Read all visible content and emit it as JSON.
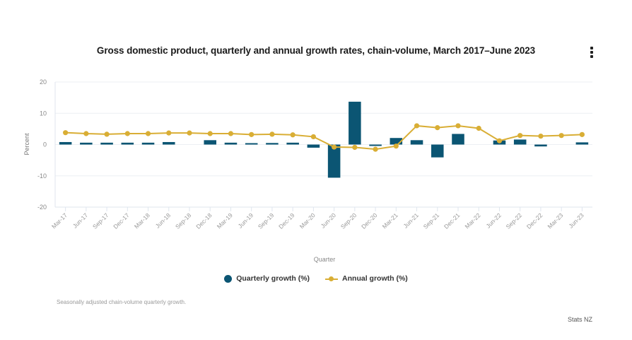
{
  "chart_data": {
    "type": "bar",
    "title": "Gross domestic product, quarterly and annual growth rates, chain-volume, March 2017–June 2023",
    "xlabel": "Quarter",
    "ylabel": "Percent",
    "ylim": [
      -20,
      20
    ],
    "yticks": [
      20,
      10,
      0,
      -10,
      -20
    ],
    "grid": true,
    "legend_position": "bottom-center",
    "categories": [
      "Mar-17",
      "Jun-17",
      "Sep-17",
      "Dec-17",
      "Mar-18",
      "Jun-18",
      "Sep-18",
      "Dec-18",
      "Mar-19",
      "Jun-19",
      "Sep-19",
      "Dec-19",
      "Mar-20",
      "Jun-20",
      "Sep-20",
      "Dec-20",
      "Mar-21",
      "Jun-21",
      "Sep-21",
      "Dec-21",
      "Mar-22",
      "Jun-22",
      "Sep-22",
      "Dec-22",
      "Mar-23",
      "Jun-23"
    ],
    "series": [
      {
        "name": "Quarterly growth (%)",
        "type": "bar",
        "color": "#0b5573",
        "values": [
          0.8,
          0.6,
          0.6,
          0.6,
          0.6,
          0.8,
          0.0,
          1.4,
          0.6,
          0.2,
          0.5,
          0.6,
          -1.0,
          -10.6,
          13.7,
          -0.2,
          2.1,
          1.4,
          -4.1,
          3.4,
          0.0,
          1.3,
          1.6,
          -0.6,
          0.0,
          0.7
        ]
      },
      {
        "name": "Annual growth (%)",
        "type": "line",
        "color": "#d9ae35",
        "values": [
          3.8,
          3.5,
          3.3,
          3.5,
          3.5,
          3.7,
          3.7,
          3.5,
          3.5,
          3.2,
          3.3,
          3.1,
          2.5,
          -0.8,
          -0.9,
          -1.5,
          -0.5,
          6.0,
          5.4,
          6.0,
          5.2,
          1.2,
          2.9,
          2.7,
          2.9,
          3.2
        ]
      }
    ],
    "note": "Seasonally adjusted chain-volume quarterly growth.",
    "source": "Stats NZ"
  },
  "menu": {
    "icon": "more-vertical-icon"
  }
}
